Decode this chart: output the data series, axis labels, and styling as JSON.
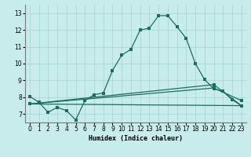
{
  "xlabel": "Humidex (Indice chaleur)",
  "xlim": [
    -0.5,
    23.5
  ],
  "ylim": [
    6.5,
    13.5
  ],
  "yticks": [
    7,
    8,
    9,
    10,
    11,
    12,
    13
  ],
  "xticks": [
    0,
    1,
    2,
    3,
    4,
    5,
    6,
    7,
    8,
    9,
    10,
    11,
    12,
    13,
    14,
    15,
    16,
    17,
    18,
    19,
    20,
    21,
    22,
    23
  ],
  "bg_color": "#c8ecec",
  "grid_color": "#a0d4d4",
  "line_color": "#1a6e60",
  "line1": {
    "x": [
      0,
      1,
      2,
      3,
      4,
      5,
      6,
      7,
      8,
      9,
      10,
      11,
      12,
      13,
      14,
      15,
      16,
      17,
      18,
      19,
      20,
      21,
      22,
      23
    ],
    "y": [
      8.05,
      7.7,
      7.1,
      7.4,
      7.2,
      6.65,
      7.8,
      8.15,
      8.25,
      9.6,
      10.5,
      10.85,
      12.0,
      12.1,
      12.85,
      12.85,
      12.2,
      11.5,
      10.0,
      9.05,
      8.5,
      8.35,
      7.85,
      7.5
    ]
  },
  "line2": {
    "x": [
      0,
      23
    ],
    "y": [
      7.6,
      7.5
    ]
  },
  "line3": {
    "x": [
      0,
      20,
      23
    ],
    "y": [
      7.6,
      8.55,
      7.8
    ]
  },
  "line4": {
    "x": [
      0,
      20,
      23
    ],
    "y": [
      7.6,
      8.75,
      7.5
    ]
  }
}
